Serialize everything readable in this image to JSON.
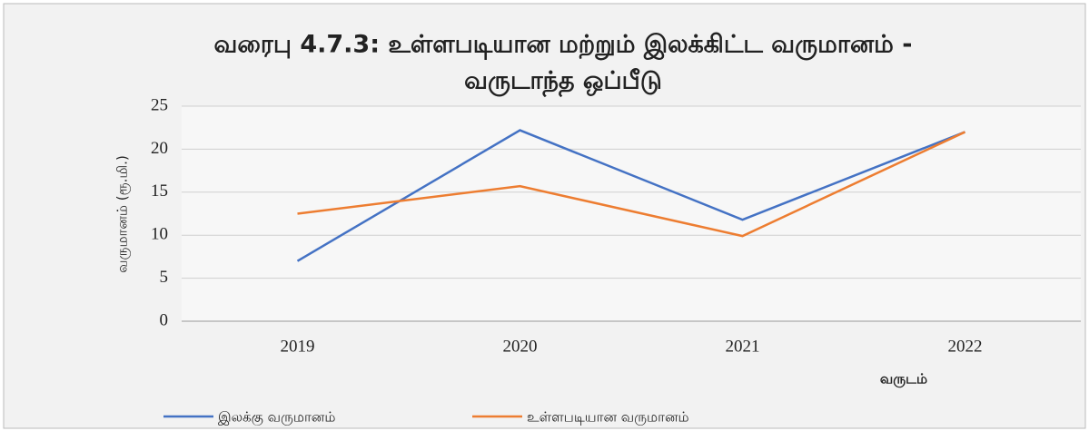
{
  "chart_data": {
    "type": "line",
    "title": [
      "வரைபு 4.7.3: உள்ளபடியான மற்றும் இலக்கிட்ட வருமானம் -",
      "வருடாந்த ஒப்பீடு"
    ],
    "y_label": "வருமானம் (ரூ.மி.)",
    "x_label": "வருடம்",
    "categories": [
      "2019",
      "2020",
      "2021",
      "2022"
    ],
    "series": [
      {
        "name": "இலக்கு வருமானம்",
        "color": "#4472c4",
        "values": [
          7,
          22.2,
          11.8,
          22
        ]
      },
      {
        "name": "உள்ளபடியான வருமானம்",
        "color": "#ed7d31",
        "values": [
          12.5,
          15.7,
          9.9,
          22
        ]
      }
    ],
    "ylim": [
      0,
      25
    ],
    "yticks": [
      0,
      5,
      10,
      15,
      20,
      25
    ],
    "grid": true,
    "legend": "bottom-left"
  }
}
